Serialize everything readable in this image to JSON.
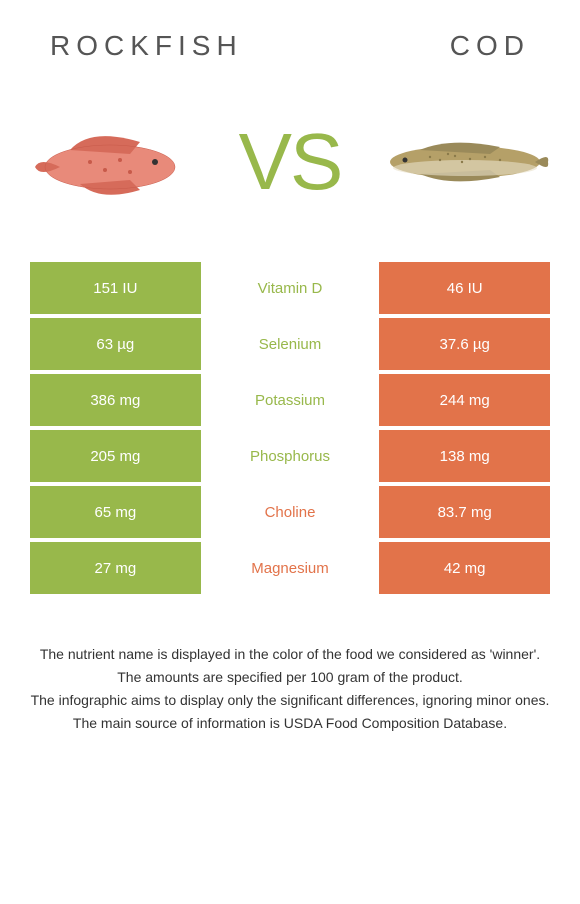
{
  "header": {
    "left_title": "ROCKFISH",
    "right_title": "COD",
    "vs_text": "VS"
  },
  "colors": {
    "green": "#98b84b",
    "orange": "#e2734a",
    "white": "#ffffff"
  },
  "fish_images": {
    "rockfish": {
      "body_color": "#e88a7a",
      "fin_color": "#d66b5a"
    },
    "cod": {
      "body_color": "#b5a068",
      "spot_color": "#8a7a4a"
    }
  },
  "rows": [
    {
      "left": "151 IU",
      "mid": "Vitamin D",
      "right": "46 IU",
      "winner": "green"
    },
    {
      "left": "63 µg",
      "mid": "Selenium",
      "right": "37.6 µg",
      "winner": "green"
    },
    {
      "left": "386 mg",
      "mid": "Potassium",
      "right": "244 mg",
      "winner": "green"
    },
    {
      "left": "205 mg",
      "mid": "Phosphorus",
      "right": "138 mg",
      "winner": "green"
    },
    {
      "left": "65 mg",
      "mid": "Choline",
      "right": "83.7 mg",
      "winner": "orange"
    },
    {
      "left": "27 mg",
      "mid": "Magnesium",
      "right": "42 mg",
      "winner": "orange"
    }
  ],
  "notes": [
    "The nutrient name is displayed in the color of the food we considered as 'winner'.",
    "The amounts are specified per 100 gram of the product.",
    "The infographic aims to display only the significant differences, ignoring minor ones.",
    "The main source of information is USDA Food Composition Database."
  ]
}
